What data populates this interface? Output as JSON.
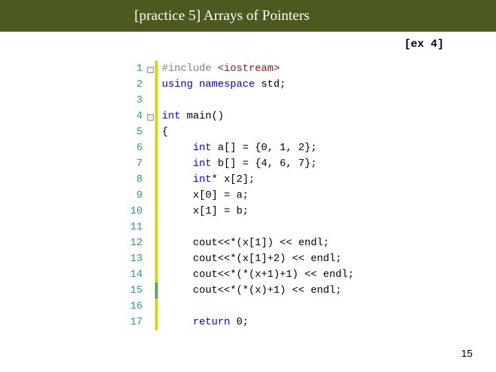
{
  "title": "[practice 5] Arrays of Pointers",
  "ex_label": "[ex 4]",
  "page_number": "15",
  "colors": {
    "title_bar": "#4d5a1f",
    "title_text": "#ffffff",
    "line_number": "#2b91af",
    "keyword": "#0000ff",
    "preprocessor": "#808080",
    "string": "#a31515",
    "bar_yellow": "#d8d800",
    "bar_green": "#4caf50"
  },
  "code": {
    "lines": [
      {
        "n": "1",
        "fold": "-",
        "bar": "yellow",
        "tokens": [
          [
            "pp",
            "#include "
          ],
          [
            "str",
            "<iostream>"
          ]
        ]
      },
      {
        "n": "2",
        "fold": "",
        "bar": "yellow",
        "tokens": [
          [
            "kw",
            "using namespace"
          ],
          [
            "txt",
            " std;"
          ]
        ]
      },
      {
        "n": "3",
        "fold": "",
        "bar": "yellow",
        "tokens": []
      },
      {
        "n": "4",
        "fold": "-",
        "bar": "yellow",
        "tokens": [
          [
            "kw",
            "int"
          ],
          [
            "txt",
            " main()"
          ]
        ]
      },
      {
        "n": "5",
        "fold": "",
        "bar": "yellow",
        "tokens": [
          [
            "txt",
            "{"
          ]
        ]
      },
      {
        "n": "6",
        "fold": "",
        "bar": "yellow",
        "tokens": [
          [
            "txt",
            "     "
          ],
          [
            "kw",
            "int"
          ],
          [
            "txt",
            " a[] = {0, 1, 2};"
          ]
        ]
      },
      {
        "n": "7",
        "fold": "",
        "bar": "yellow",
        "tokens": [
          [
            "txt",
            "     "
          ],
          [
            "kw",
            "int"
          ],
          [
            "txt",
            " b[] = {4, 6, 7};"
          ]
        ]
      },
      {
        "n": "8",
        "fold": "",
        "bar": "yellow",
        "tokens": [
          [
            "txt",
            "     "
          ],
          [
            "kw",
            "int"
          ],
          [
            "txt",
            "* x[2];"
          ]
        ]
      },
      {
        "n": "9",
        "fold": "",
        "bar": "yellow",
        "tokens": [
          [
            "txt",
            "     x[0] = a;"
          ]
        ]
      },
      {
        "n": "10",
        "fold": "",
        "bar": "yellow",
        "tokens": [
          [
            "txt",
            "     x[1] = b;"
          ]
        ]
      },
      {
        "n": "11",
        "fold": "",
        "bar": "yellow",
        "tokens": []
      },
      {
        "n": "12",
        "fold": "",
        "bar": "yellow",
        "tokens": [
          [
            "txt",
            "     cout<<*(x[1]) << endl;"
          ]
        ]
      },
      {
        "n": "13",
        "fold": "",
        "bar": "yellow",
        "tokens": [
          [
            "txt",
            "     cout<<*(x[1]+2) << endl;"
          ]
        ]
      },
      {
        "n": "14",
        "fold": "",
        "bar": "yellow",
        "tokens": [
          [
            "txt",
            "     cout<<*(*(x+1)+1) << endl;"
          ]
        ]
      },
      {
        "n": "15",
        "fold": "",
        "bar": "green",
        "tokens": [
          [
            "txt",
            "     cout<<*(*(x)+1) << endl;"
          ]
        ]
      },
      {
        "n": "16",
        "fold": "",
        "bar": "yellow",
        "tokens": []
      },
      {
        "n": "17",
        "fold": "",
        "bar": "yellow",
        "tokens": [
          [
            "txt",
            "     "
          ],
          [
            "kw",
            "return"
          ],
          [
            "txt",
            " 0;"
          ]
        ]
      }
    ]
  }
}
